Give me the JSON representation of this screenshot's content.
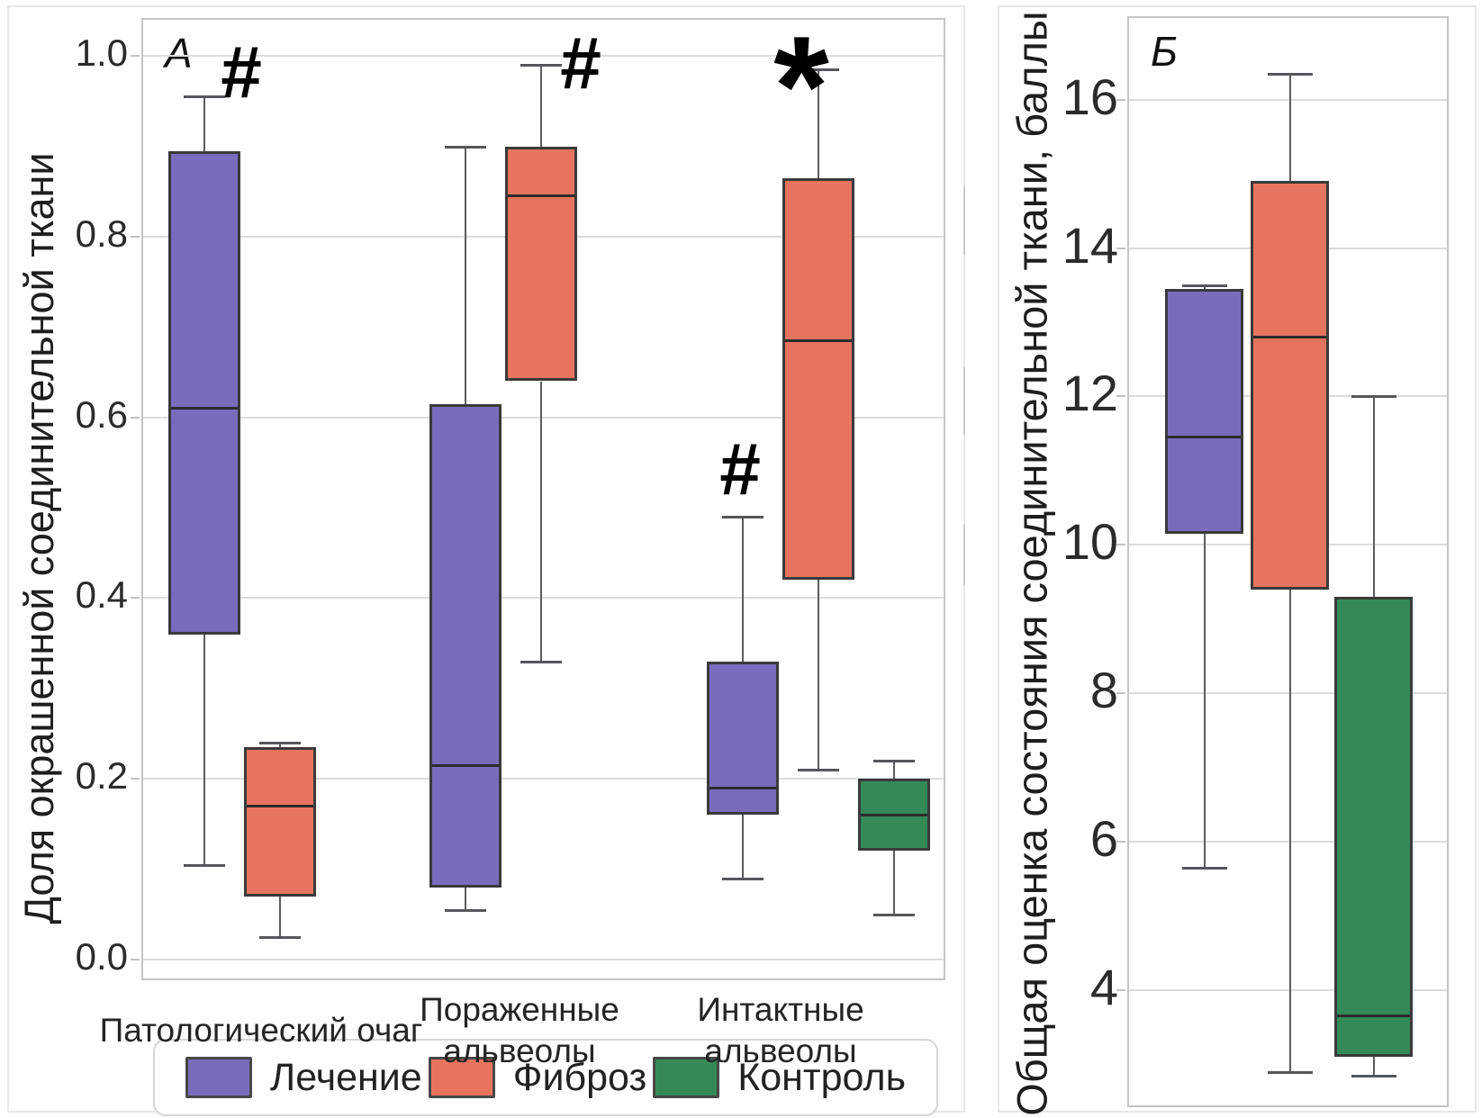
{
  "legend": {
    "items": [
      {
        "label": "Лечение",
        "color": "#7a6bbd"
      },
      {
        "label": "Фиброз",
        "color": "#e7745e"
      },
      {
        "label": "Контроль",
        "color": "#338a58"
      }
    ]
  },
  "chart_data": [
    {
      "type": "boxplot",
      "panel_label": "А",
      "ylabel": "Доля окрашенной соединительной ткани",
      "ylim": [
        -0.025,
        1.04
      ],
      "yticks": [
        0.0,
        0.2,
        0.4,
        0.6,
        0.8,
        1.0
      ],
      "ytick_labels": [
        "0.0",
        "0.2",
        "0.4",
        "0.6",
        "0.8",
        "1.0"
      ],
      "grid": true,
      "legend_position": "bottom",
      "categories": [
        "Патологический очаг",
        "Пораженные альвеолы",
        "Интактные альвеолы"
      ],
      "category_label_lines": [
        [
          "Патологический очаг"
        ],
        [
          "Пораженные",
          "альвеолы"
        ],
        [
          "Интактные",
          "альвеолы"
        ]
      ],
      "series": [
        {
          "name": "Лечение",
          "color": "#7a6bbd",
          "boxes": [
            {
              "whislo": 0.105,
              "q1": 0.36,
              "med": 0.61,
              "q3": 0.895,
              "whishi": 0.955
            },
            {
              "whislo": 0.055,
              "q1": 0.08,
              "med": 0.215,
              "q3": 0.615,
              "whishi": 0.9
            },
            {
              "whislo": 0.09,
              "q1": 0.16,
              "med": 0.19,
              "q3": 0.33,
              "whishi": 0.49
            }
          ]
        },
        {
          "name": "Фиброз",
          "color": "#e7745e",
          "boxes": [
            {
              "whislo": 0.025,
              "q1": 0.07,
              "med": 0.17,
              "q3": 0.235,
              "whishi": 0.24
            },
            {
              "whislo": 0.33,
              "q1": 0.64,
              "med": 0.845,
              "q3": 0.9,
              "whishi": 0.99
            },
            {
              "whislo": 0.21,
              "q1": 0.42,
              "med": 0.685,
              "q3": 0.865,
              "whishi": 0.985
            }
          ]
        },
        {
          "name": "Контроль",
          "color": "#338a58",
          "boxes": [
            null,
            null,
            {
              "whislo": 0.05,
              "q1": 0.12,
              "med": 0.16,
              "q3": 0.2,
              "whishi": 0.22
            }
          ]
        }
      ],
      "annotations": [
        {
          "text": "#",
          "category_index": 0,
          "series_index": 0
        },
        {
          "text": "#",
          "category_index": 1,
          "series_index": 1
        },
        {
          "text": "*",
          "category_index": 2,
          "series_index": 1
        },
        {
          "text": "#",
          "category_index": 2,
          "series_index": 0
        }
      ]
    },
    {
      "type": "boxplot",
      "panel_label": "Б",
      "ylabel": "Общая оценка состояния соединительной ткани, баллы",
      "ylim": [
        2.4,
        17.1
      ],
      "yticks": [
        4,
        6,
        8,
        10,
        12,
        14,
        16
      ],
      "ytick_labels": [
        "4",
        "6",
        "8",
        "10",
        "12",
        "14",
        "16"
      ],
      "grid": true,
      "categories": [
        ""
      ],
      "series": [
        {
          "name": "Лечение",
          "color": "#7a6bbd",
          "boxes": [
            {
              "whislo": 5.65,
              "q1": 10.15,
              "med": 11.45,
              "q3": 13.45,
              "whishi": 13.5
            }
          ]
        },
        {
          "name": "Фиброз",
          "color": "#e7745e",
          "boxes": [
            {
              "whislo": 2.9,
              "q1": 9.4,
              "med": 12.8,
              "q3": 14.9,
              "whishi": 16.35
            }
          ]
        },
        {
          "name": "Контроль",
          "color": "#338a58",
          "boxes": [
            {
              "whislo": 2.85,
              "q1": 3.1,
              "med": 3.65,
              "q3": 9.3,
              "whishi": 12.0
            }
          ]
        }
      ],
      "annotations": []
    }
  ]
}
